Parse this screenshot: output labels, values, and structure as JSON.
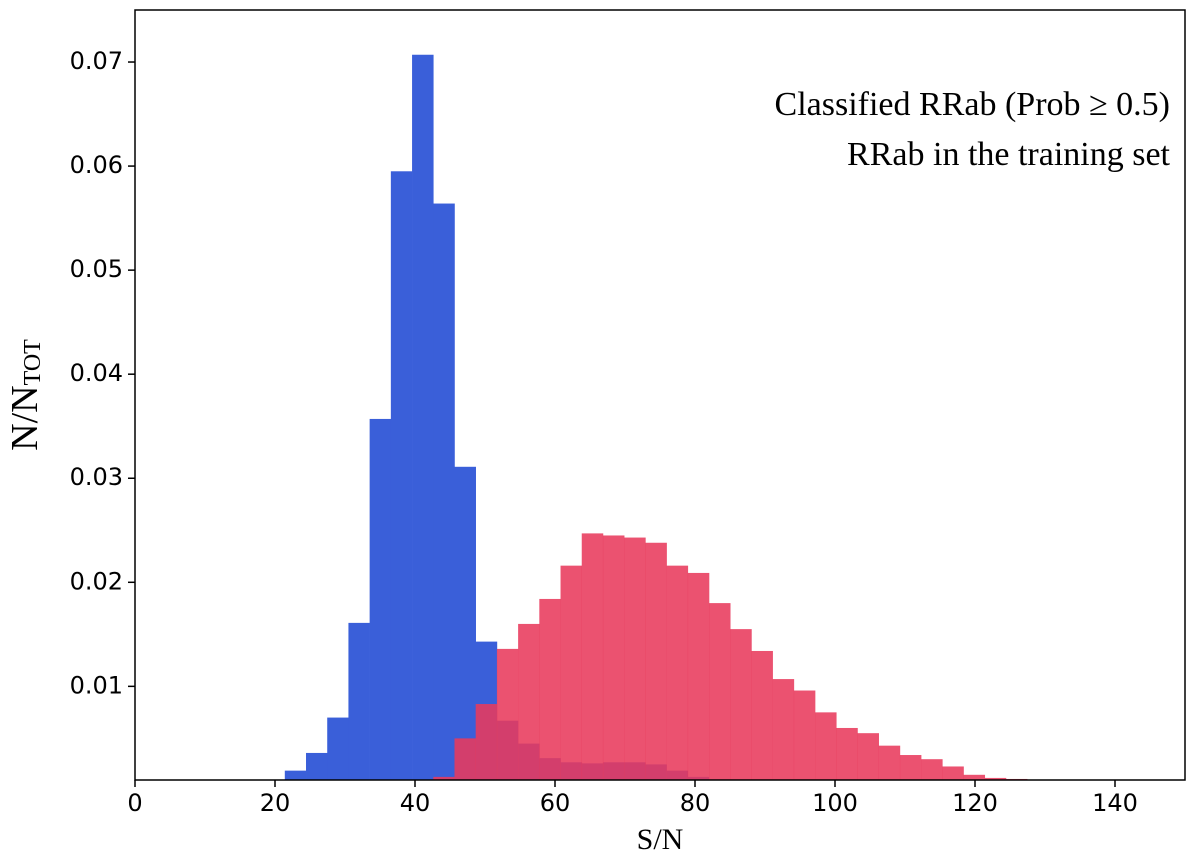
{
  "chart_data": {
    "type": "histogram",
    "xlabel": "S/N",
    "ylabel": "N/N",
    "ylabel_sub": "TOT",
    "bins": [
      21.4,
      24.43,
      27.46,
      30.49,
      33.52,
      36.55,
      39.58,
      42.61,
      45.64,
      48.67,
      51.7,
      54.73,
      57.76,
      60.79,
      63.82,
      66.85,
      69.88,
      72.91,
      75.94,
      78.97,
      82.0,
      85.03,
      88.06,
      91.09,
      94.12,
      97.15,
      100.18,
      103.21,
      106.24,
      109.27,
      112.3,
      115.33,
      118.36,
      121.39,
      124.42,
      127.45
    ],
    "series": [
      {
        "name": "Classified RRab (Prob ≥ 0.5)",
        "color": "#3a5fd9",
        "values": [
          0.0019,
          0.0036,
          0.007,
          0.0161,
          0.0357,
          0.0595,
          0.0707,
          0.0564,
          0.0311,
          0.0143,
          0.0067,
          0.0045,
          0.0031,
          0.0027,
          0.0026,
          0.0027,
          0.0027,
          0.0025,
          0.0019,
          0.0013,
          0,
          0,
          0,
          0,
          0,
          0,
          0,
          0,
          0,
          0,
          0,
          0,
          0,
          0,
          0
        ]
      },
      {
        "name": "RRab in the training set",
        "color": "#e83a5c",
        "values": [
          0,
          0,
          0,
          0,
          0,
          0,
          0,
          0.0013,
          0.005,
          0.0083,
          0.0136,
          0.016,
          0.0184,
          0.0216,
          0.0247,
          0.0245,
          0.0243,
          0.0238,
          0.0216,
          0.0209,
          0.018,
          0.0155,
          0.0134,
          0.0107,
          0.0096,
          0.0075,
          0.006,
          0.0055,
          0.0043,
          0.0034,
          0.003,
          0.0023,
          0.0015,
          0.0012,
          0.0011
        ]
      }
    ],
    "xlim": [
      0,
      150
    ],
    "ylim": [
      0.001,
      0.075
    ],
    "xticks": [
      0,
      20,
      40,
      60,
      80,
      100,
      120,
      140
    ],
    "yticks": [
      0.01,
      0.02,
      0.03,
      0.04,
      0.05,
      0.06,
      0.07
    ],
    "legend": "upper right"
  }
}
